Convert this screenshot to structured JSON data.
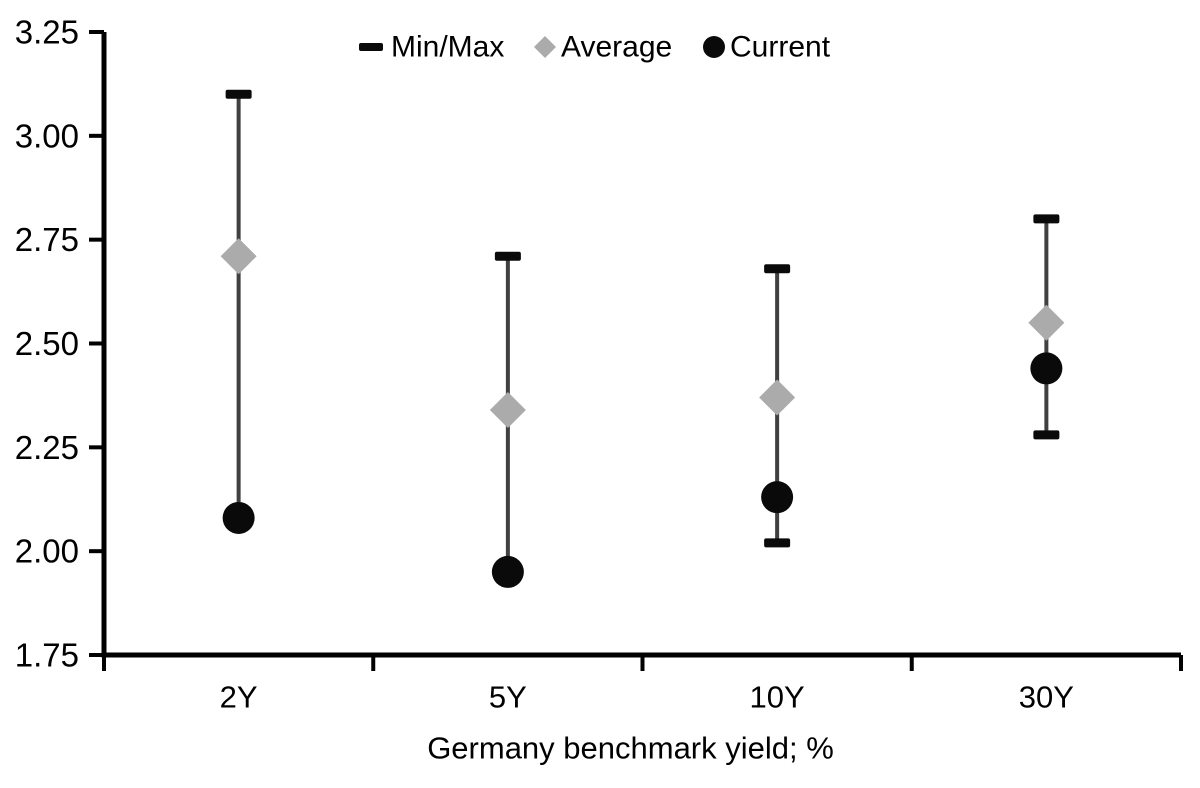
{
  "chart_data": {
    "type": "scatter",
    "subtype": "min-max-range-with-markers",
    "title": "",
    "xlabel": "Germany benchmark yield; %",
    "ylabel": "",
    "categories": [
      "2Y",
      "5Y",
      "10Y",
      "30Y"
    ],
    "series": [
      {
        "name": "Min/Max",
        "role": "range",
        "marker": "dash",
        "min": [
          2.08,
          1.95,
          2.02,
          2.28
        ],
        "max": [
          3.1,
          2.71,
          2.68,
          2.8
        ]
      },
      {
        "name": "Average",
        "role": "point",
        "marker": "diamond",
        "values": [
          2.71,
          2.34,
          2.37,
          2.55
        ]
      },
      {
        "name": "Current",
        "role": "point",
        "marker": "circle",
        "values": [
          2.08,
          1.95,
          2.13,
          2.44
        ]
      }
    ],
    "ylim": [
      1.75,
      3.25
    ],
    "ytick_step": 0.25,
    "ytick_labels": [
      "1.75",
      "2.00",
      "2.25",
      "2.50",
      "2.75",
      "3.00",
      "3.25"
    ],
    "grid": false,
    "legend_position": "top-center",
    "legend": [
      {
        "marker": "dash-icon",
        "label": "Min/Max"
      },
      {
        "marker": "diamond-icon",
        "label": "Average"
      },
      {
        "marker": "circle-icon",
        "label": "Current"
      }
    ]
  },
  "colors": {
    "axis_black": "#000000",
    "marker_black": "#0a0a0a",
    "average_grey": "#ababab",
    "whisker_grey": "#404040",
    "background": "#ffffff"
  }
}
